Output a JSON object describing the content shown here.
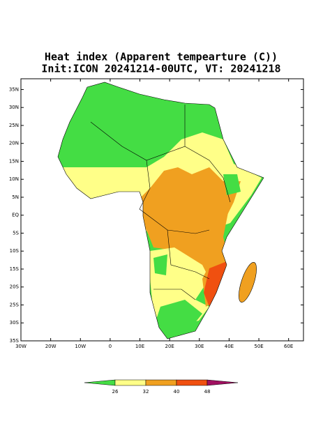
{
  "header": {
    "title_line1": "Heat index (Apparent tempearture (C))",
    "title_line2": "Init:ICON 20241214-00UTC, VT: 20241218"
  },
  "map": {
    "lon_range": [
      -30,
      65
    ],
    "lat_range": [
      -35,
      38
    ],
    "lat_ticks": [
      {
        "value": 35,
        "label": "35N"
      },
      {
        "value": 30,
        "label": "30N"
      },
      {
        "value": 25,
        "label": "25N"
      },
      {
        "value": 20,
        "label": "20N"
      },
      {
        "value": 15,
        "label": "15N"
      },
      {
        "value": 10,
        "label": "10N"
      },
      {
        "value": 5,
        "label": "5N"
      },
      {
        "value": 0,
        "label": "EQ"
      },
      {
        "value": -5,
        "label": "5S"
      },
      {
        "value": -10,
        "label": "10S"
      },
      {
        "value": -15,
        "label": "15S"
      },
      {
        "value": -20,
        "label": "20S"
      },
      {
        "value": -25,
        "label": "25S"
      },
      {
        "value": -30,
        "label": "30S"
      },
      {
        "value": -35,
        "label": "35S"
      }
    ],
    "lon_ticks": [
      {
        "value": -30,
        "label": "30W"
      },
      {
        "value": -20,
        "label": "20W"
      },
      {
        "value": -10,
        "label": "10W"
      },
      0,
      {
        "value": 10,
        "label": "10E"
      },
      {
        "value": 20,
        "label": "20E"
      },
      {
        "value": 30,
        "label": "30E"
      },
      {
        "value": 40,
        "label": "40E"
      },
      {
        "value": 50,
        "label": "50E"
      },
      {
        "value": 60,
        "label": "60E"
      }
    ]
  },
  "colorbar": {
    "ticks": [
      26,
      32,
      40,
      48
    ],
    "colors": [
      "#44dd44",
      "#ffff88",
      "#f0a020",
      "#f05010",
      "#a01060"
    ]
  }
}
